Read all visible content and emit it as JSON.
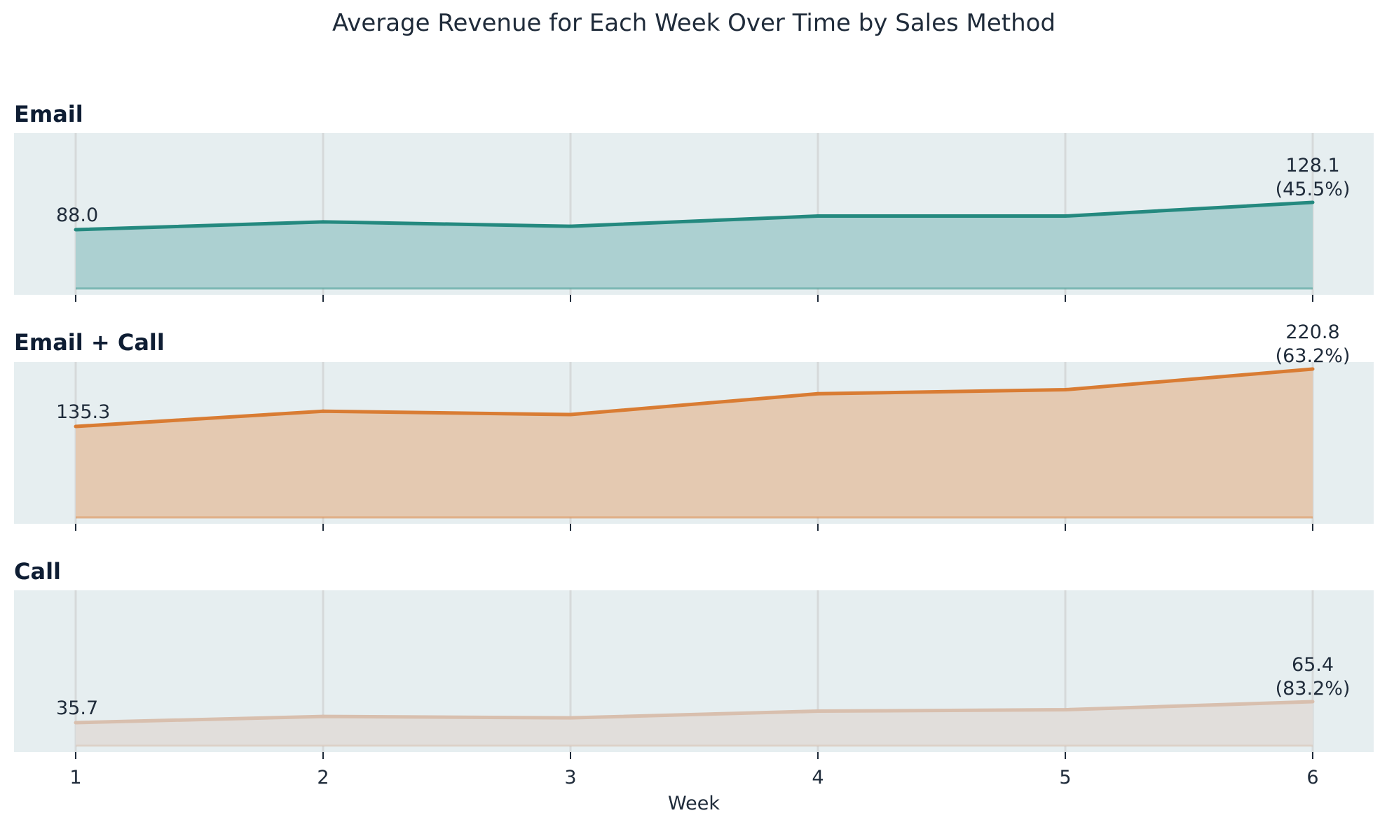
{
  "chart_data": {
    "type": "area",
    "title": "Average Revenue for Each Week Over Time by Sales Method",
    "xlabel": "Week",
    "ylabel": "",
    "x": [
      1,
      2,
      3,
      4,
      5,
      6
    ],
    "x_tick_labels": [
      "1",
      "2",
      "3",
      "4",
      "5",
      "6"
    ],
    "grid": "vertical",
    "legend": "none",
    "panel_background": "#e6eef0",
    "series": [
      {
        "name": "Email",
        "color": "#24897f",
        "fill_color": "#acd0d1",
        "values": [
          88.0,
          99.5,
          93.0,
          108.0,
          108.0,
          128.1
        ],
        "start_label": "88.0",
        "end_label_value": "128.1",
        "end_label_pct": "(45.5%)"
      },
      {
        "name": "Email + Call",
        "color": "#d97c33",
        "fill_color": "#e4c9b1",
        "values": [
          135.3,
          158.0,
          153.0,
          184.0,
          190.0,
          220.8
        ],
        "start_label": "135.3",
        "end_label_value": "220.8",
        "end_label_pct": "(63.2%)"
      },
      {
        "name": "Call",
        "color": "#d8bfae",
        "fill_color": "#e1dedb",
        "values": [
          35.7,
          44.5,
          42.5,
          52.0,
          54.0,
          65.4
        ],
        "start_label": "35.7",
        "end_label_value": "65.4",
        "end_label_pct": "(83.2%)"
      }
    ]
  }
}
